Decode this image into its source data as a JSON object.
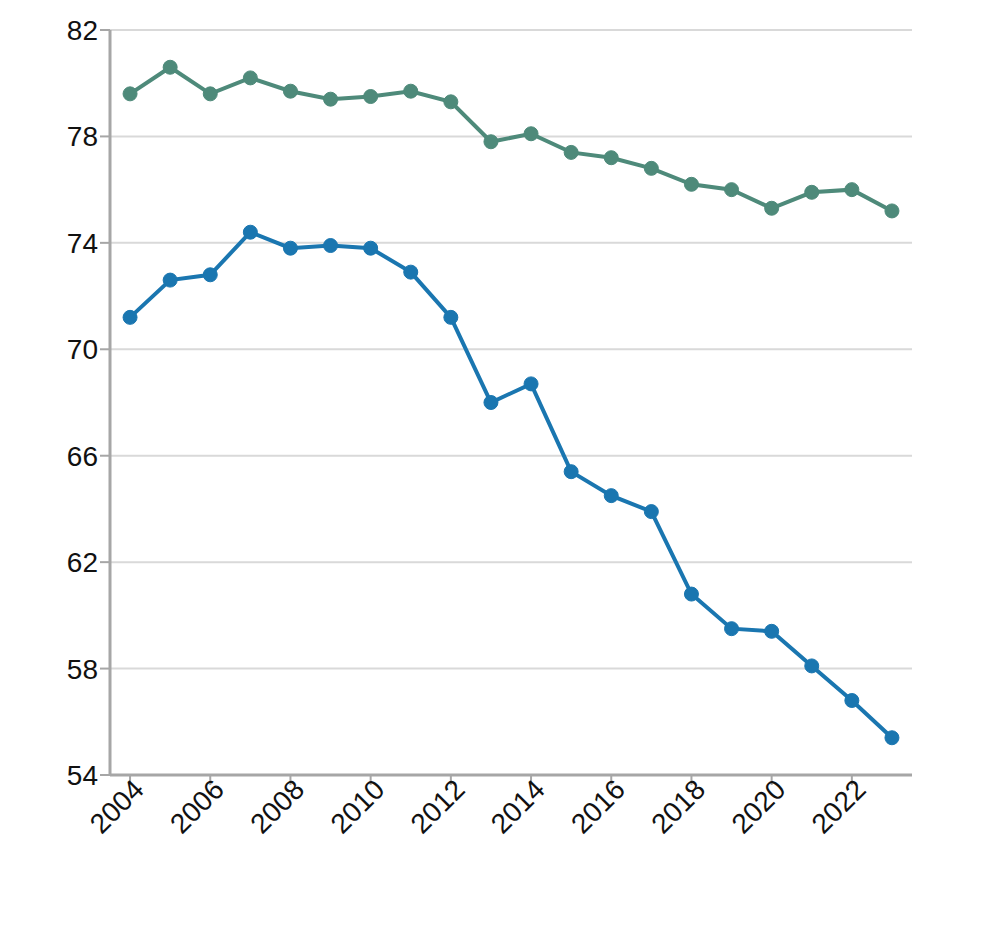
{
  "chart_data": {
    "type": "line",
    "x": [
      2004,
      2005,
      2006,
      2007,
      2008,
      2009,
      2010,
      2011,
      2012,
      2013,
      2014,
      2015,
      2016,
      2017,
      2018,
      2019,
      2020,
      2021,
      2022,
      2023
    ],
    "series": [
      {
        "color": "#4e8a7a",
        "marker": "circle",
        "values": [
          79.6,
          80.6,
          79.6,
          80.2,
          79.7,
          79.4,
          79.5,
          79.7,
          79.3,
          77.8,
          78.1,
          77.4,
          77.2,
          76.8,
          76.2,
          76.0,
          75.3,
          75.9,
          76.0,
          75.2
        ]
      },
      {
        "color": "#1a76b0",
        "marker": "circle",
        "values": [
          71.2,
          72.6,
          72.8,
          74.4,
          73.8,
          73.9,
          73.8,
          72.9,
          71.2,
          68.0,
          68.7,
          65.4,
          64.5,
          63.9,
          60.8,
          59.5,
          59.4,
          58.1,
          56.8,
          55.4
        ]
      }
    ],
    "xlim": [
      2003.5,
      2023.5
    ],
    "xticks": [
      2004,
      2006,
      2008,
      2010,
      2012,
      2014,
      2016,
      2018,
      2020,
      2022
    ],
    "ylim": [
      54,
      82
    ],
    "yticks": [
      54,
      58,
      62,
      66,
      70,
      74,
      78,
      82
    ],
    "grid": true
  }
}
